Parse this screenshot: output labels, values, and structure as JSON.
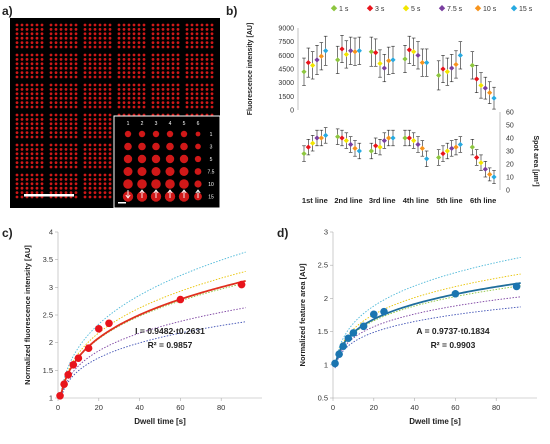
{
  "panels": {
    "a": "a)",
    "b": "b)",
    "c": "c)",
    "d": "d)"
  },
  "micrograph": {
    "inset_column_numbers": [
      "1",
      "2",
      "3",
      "4",
      "5",
      "6"
    ],
    "inset_row_labels": [
      "1",
      "3",
      "5",
      "7.5",
      "10",
      "15"
    ],
    "colors": {
      "background": "#000000",
      "spot": "#d01818",
      "scale_bar": "#ffffff"
    }
  },
  "colors": {
    "red_fit": "#e0301e",
    "red_point": "#e8141c",
    "blue_fit": "#1f6e9c",
    "blue_point": "#1b75b0",
    "axis": "#333333"
  },
  "chart_data": [
    {
      "type": "scatter",
      "panel": "b",
      "legend_position": "top",
      "series": [
        {
          "name": "1 s",
          "color": "#8dc63f"
        },
        {
          "name": "3 s",
          "color": "#e8141c"
        },
        {
          "name": "5 s",
          "color": "#f2e600"
        },
        {
          "name": "7.5 s",
          "color": "#7a3fa0"
        },
        {
          "name": "10 s",
          "color": "#f7941d"
        },
        {
          "name": "15 s",
          "color": "#27aae1"
        }
      ],
      "categories": [
        "1st line",
        "2nd line",
        "3rd line",
        "4th line",
        "5th line",
        "6th line"
      ],
      "upper": {
        "ylabel": "Fluorescence intensity [AU]",
        "ylim": [
          0,
          9000
        ],
        "yticks": [
          "0",
          "1500",
          "3000",
          "4500",
          "6000",
          "7500",
          "9000"
        ],
        "values": [
          [
            4200,
            5200,
            4900,
            5500,
            5900,
            6500
          ],
          [
            5500,
            6700,
            6100,
            6500,
            6400,
            6500
          ],
          [
            6400,
            6300,
            5100,
            4600,
            5400,
            5500
          ],
          [
            5600,
            6600,
            6400,
            6000,
            5200,
            5200
          ],
          [
            3800,
            4500,
            4200,
            4600,
            5000,
            6000
          ],
          [
            4900,
            3400,
            2700,
            2400,
            1900,
            1300
          ]
        ],
        "errors": [
          [
            1500,
            1600,
            1500,
            1600,
            1500,
            1600
          ],
          [
            1500,
            1500,
            1500,
            1500,
            1500,
            1500
          ],
          [
            1600,
            1500,
            1500,
            1500,
            1500,
            1500
          ],
          [
            1500,
            1500,
            1500,
            1500,
            1500,
            1500
          ],
          [
            1600,
            1500,
            1500,
            1500,
            1500,
            1500
          ],
          [
            1500,
            1500,
            1400,
            1200,
            1200,
            1200
          ]
        ]
      },
      "lower": {
        "ylabel": "Spot area [µm²]",
        "ylim": [
          0,
          60
        ],
        "yticks": [
          "0",
          "10",
          "20",
          "30",
          "40",
          "50",
          "60"
        ],
        "values": [
          [
            28,
            33,
            36,
            40,
            40,
            42
          ],
          [
            41,
            40,
            38,
            35,
            32,
            30
          ],
          [
            30,
            34,
            33,
            38,
            40,
            40
          ],
          [
            40,
            40,
            38,
            35,
            32,
            24
          ],
          [
            25,
            28,
            30,
            32,
            33,
            35
          ],
          [
            33,
            25,
            21,
            16,
            12,
            10
          ]
        ],
        "errors": [
          [
            6,
            6,
            6,
            6,
            6,
            6
          ],
          [
            6,
            6,
            6,
            6,
            6,
            6
          ],
          [
            6,
            6,
            6,
            6,
            6,
            6
          ],
          [
            6,
            6,
            6,
            6,
            6,
            6
          ],
          [
            6,
            6,
            6,
            6,
            6,
            6
          ],
          [
            6,
            6,
            6,
            6,
            5,
            5
          ]
        ]
      }
    },
    {
      "type": "scatter",
      "panel": "c",
      "xlabel": "Dwell time [s]",
      "ylabel": "Normalized fluorescence intensity [AU]",
      "xlim": [
        0,
        100
      ],
      "ylim": [
        1,
        4
      ],
      "xticks": [
        "0",
        "20",
        "40",
        "60",
        "80"
      ],
      "yticks": [
        "1",
        "1.5",
        "2",
        "2.5",
        "3",
        "3.5",
        "4"
      ],
      "points": {
        "x": [
          1,
          3,
          5,
          7.5,
          10,
          15,
          20,
          25,
          60,
          90
        ],
        "y": [
          1.04,
          1.25,
          1.42,
          1.6,
          1.72,
          1.9,
          2.25,
          2.35,
          2.78,
          3.05
        ]
      },
      "fit": {
        "a": 0.9482,
        "b": 0.2631
      },
      "equation": "I = 0.9482·t0.2631",
      "r2": "R² = 0.9857",
      "dotted_fits": [
        {
          "a": 0.98,
          "b": 0.29,
          "color": "#4cb8d8"
        },
        {
          "a": 0.97,
          "b": 0.27,
          "color": "#e8c300"
        },
        {
          "a": 0.95,
          "b": 0.26,
          "color": "#8dc63f"
        },
        {
          "a": 0.93,
          "b": 0.23,
          "color": "#7a3fa0"
        },
        {
          "a": 0.92,
          "b": 0.21,
          "color": "#3f51b5"
        }
      ]
    },
    {
      "type": "scatter",
      "panel": "d",
      "xlabel": "Dwell time [s]",
      "ylabel": "Normalized feature area [AU]",
      "xlim": [
        0,
        100
      ],
      "ylim": [
        0.5,
        3
      ],
      "xticks": [
        "0",
        "20",
        "40",
        "60",
        "80"
      ],
      "yticks": [
        "0.5",
        "1",
        "1.5",
        "2",
        "2.5",
        "3"
      ],
      "points": {
        "x": [
          1,
          3,
          5,
          7.5,
          10,
          15,
          20,
          25,
          60,
          90
        ],
        "y": [
          1.02,
          1.16,
          1.28,
          1.4,
          1.48,
          1.58,
          1.76,
          1.8,
          2.07,
          2.18
        ]
      },
      "fit": {
        "a": 0.9737,
        "b": 0.1834
      },
      "equation": "A = 0.9737·t0.1834",
      "r2": "R² = 0.9903",
      "dotted_fits": [
        {
          "a": 0.99,
          "b": 0.215,
          "color": "#4cb8d8"
        },
        {
          "a": 0.98,
          "b": 0.195,
          "color": "#e8c300"
        },
        {
          "a": 0.97,
          "b": 0.18,
          "color": "#8dc63f"
        },
        {
          "a": 0.96,
          "b": 0.165,
          "color": "#7a3fa0"
        },
        {
          "a": 0.95,
          "b": 0.15,
          "color": "#3f51b5"
        }
      ]
    }
  ]
}
